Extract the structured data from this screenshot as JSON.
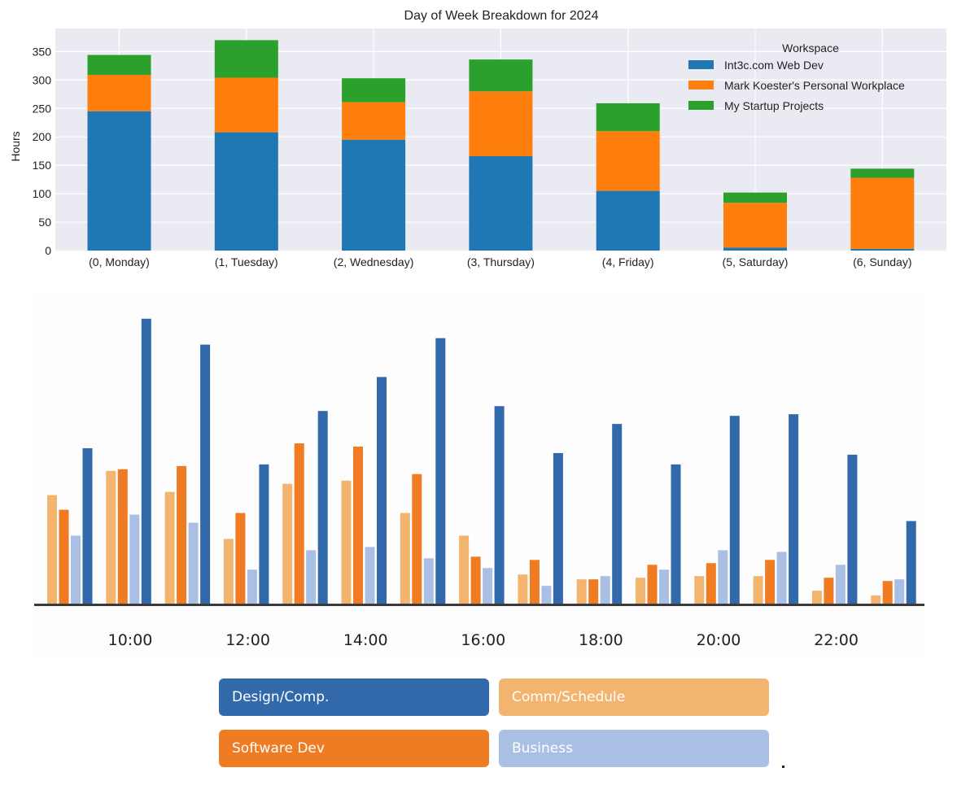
{
  "charts": {
    "weekday": {
      "title": "Day of Week Breakdown for 2024",
      "ylabel": "Hours",
      "yticks": [
        "0",
        "50",
        "100",
        "150",
        "200",
        "250",
        "300",
        "350"
      ],
      "legend_title": "Workspace"
    },
    "hourly": {
      "xticks": [
        "10:00",
        "12:00",
        "14:00",
        "16:00",
        "18:00",
        "20:00",
        "22:00"
      ]
    }
  },
  "chart_data": [
    {
      "type": "bar",
      "stacked": true,
      "title": "Day of Week Breakdown for 2024",
      "xlabel": "",
      "ylabel": "Hours",
      "ylim": [
        0,
        380
      ],
      "grid": true,
      "legend_position": "top-right",
      "legend_title": "Workspace",
      "categories": [
        "(0, Monday)",
        "(1, Tuesday)",
        "(2, Wednesday)",
        "(3, Thursday)",
        "(4, Friday)",
        "(5, Saturday)",
        "(6, Sunday)"
      ],
      "series": [
        {
          "name": "Int3c.com Web Dev",
          "color": "#1f77b4",
          "values": [
            245,
            208,
            195,
            166,
            105,
            5,
            3
          ]
        },
        {
          "name": "Mark Koester's Personal Workplace",
          "color": "#ff7f0e",
          "values": [
            64,
            96,
            66,
            114,
            105,
            79,
            125
          ]
        },
        {
          "name": "My Startup Projects",
          "color": "#2ca02c",
          "values": [
            35,
            66,
            42,
            56,
            49,
            18,
            16
          ]
        }
      ]
    },
    {
      "type": "bar",
      "title": "",
      "xlabel": "",
      "ylabel": "",
      "grid": false,
      "legend_position": "bottom",
      "hours": [
        9,
        10,
        11,
        12,
        13,
        14,
        15,
        16,
        17,
        18,
        19,
        20,
        21,
        22,
        23
      ],
      "xticks": [
        "10:00",
        "12:00",
        "14:00",
        "16:00",
        "18:00",
        "20:00",
        "22:00"
      ],
      "series": [
        {
          "name": "Design/Comp.",
          "color": "#3169aa",
          "values": [
            96,
            176,
            160,
            86,
            119,
            140,
            164,
            122,
            93,
            111,
            86,
            116,
            117,
            92,
            51
          ]
        },
        {
          "name": "Comm/Schedule",
          "color": "#f3b46f",
          "values": [
            67,
            82,
            69,
            40,
            74,
            76,
            56,
            42,
            18,
            15,
            16,
            17,
            17,
            8,
            5
          ]
        },
        {
          "name": "Software Dev",
          "color": "#ef7b22",
          "values": [
            58,
            83,
            85,
            56,
            99,
            97,
            80,
            29,
            27,
            15,
            24,
            25,
            27,
            16,
            14
          ]
        },
        {
          "name": "Business",
          "color": "#aabfe4",
          "values": [
            42,
            55,
            50,
            21,
            33,
            35,
            28,
            22,
            11,
            17,
            21,
            33,
            32,
            24,
            15
          ]
        }
      ]
    }
  ]
}
